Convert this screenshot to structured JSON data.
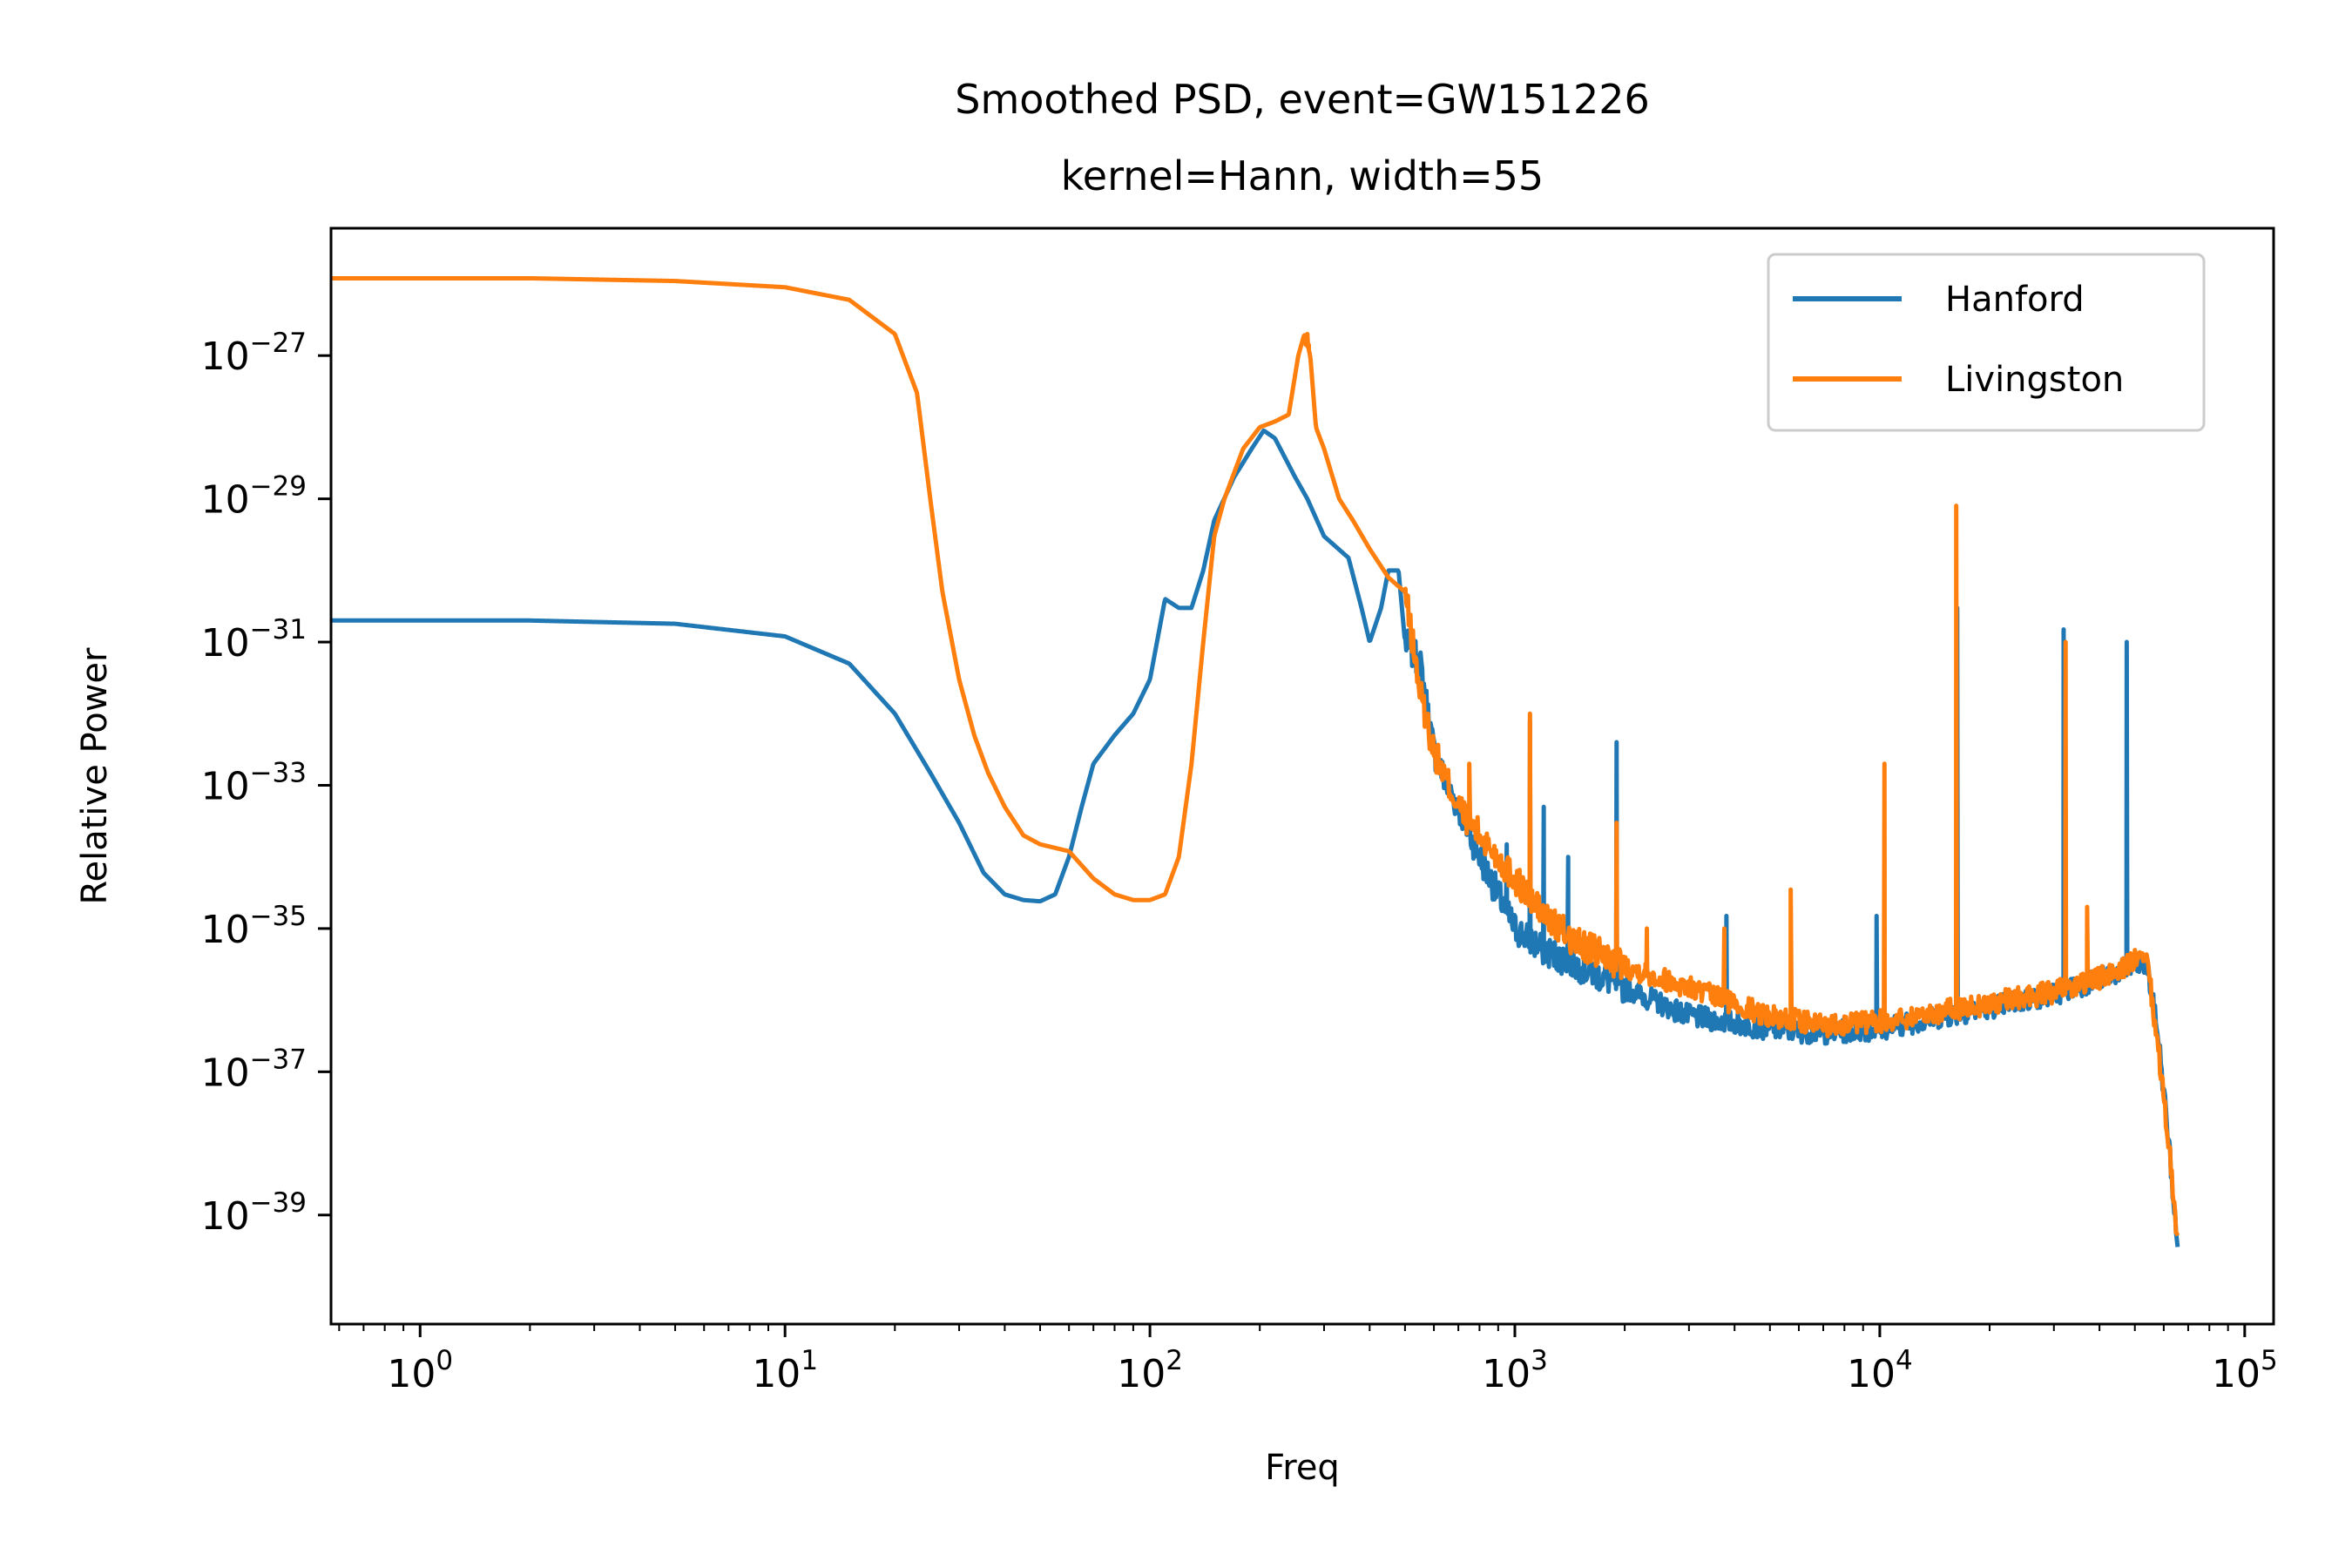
{
  "chart_data": {
    "type": "line",
    "title": "Smoothed PSD, event=GW151226",
    "subtitle": "kernel=Hann, width=55",
    "xlabel": "Freq",
    "ylabel": "Relative Power",
    "x_scale": "log",
    "y_scale": "log",
    "xlim": [
      0.57,
      120000
    ],
    "ylim": [
      3e-41,
      6e-26
    ],
    "x_ticks": [
      {
        "value": 1,
        "base": "10",
        "exp": "0"
      },
      {
        "value": 10,
        "base": "10",
        "exp": "1"
      },
      {
        "value": 100,
        "base": "10",
        "exp": "2"
      },
      {
        "value": 1000,
        "base": "10",
        "exp": "3"
      },
      {
        "value": 10000,
        "base": "10",
        "exp": "4"
      },
      {
        "value": 100000,
        "base": "10",
        "exp": "5"
      }
    ],
    "y_ticks": [
      {
        "value": 1e-27,
        "base": "10",
        "exp": "−27"
      },
      {
        "value": 1e-29,
        "base": "10",
        "exp": "−29"
      },
      {
        "value": 1e-31,
        "base": "10",
        "exp": "−31"
      },
      {
        "value": 1e-33,
        "base": "10",
        "exp": "−33"
      },
      {
        "value": 1e-35,
        "base": "10",
        "exp": "−35"
      },
      {
        "value": 1e-37,
        "base": "10",
        "exp": "−37"
      },
      {
        "value": 1e-39,
        "base": "10",
        "exp": "−39"
      }
    ],
    "grid": false,
    "legend_position": "top-right",
    "series": [
      {
        "name": "Hanford",
        "color": "#1f77b4",
        "noise_seed": 7,
        "points": [
          [
            0.57,
            2e-31
          ],
          [
            2,
            2e-31
          ],
          [
            5,
            1.8e-31
          ],
          [
            10,
            1.2e-31
          ],
          [
            15,
            5e-32
          ],
          [
            20,
            1e-32
          ],
          [
            25,
            1.5e-33
          ],
          [
            30,
            3e-34
          ],
          [
            35,
            6e-35
          ],
          [
            40,
            3e-35
          ],
          [
            45,
            2.5e-35
          ],
          [
            50,
            2.4e-35
          ],
          [
            55,
            3e-35
          ],
          [
            60,
            1e-34
          ],
          [
            65,
            5e-34
          ],
          [
            70,
            2e-33
          ],
          [
            80,
            5e-33
          ],
          [
            90,
            1e-32
          ],
          [
            100,
            3e-32
          ],
          [
            110,
            4e-31
          ],
          [
            120,
            3e-31
          ],
          [
            130,
            3e-31
          ],
          [
            140,
            1e-30
          ],
          [
            150,
            5e-30
          ],
          [
            170,
            2e-29
          ],
          [
            190,
            5e-29
          ],
          [
            205,
            9e-29
          ],
          [
            220,
            7e-29
          ],
          [
            250,
            2e-29
          ],
          [
            270,
            1e-29
          ],
          [
            300,
            3e-30
          ],
          [
            350,
            1.5e-30
          ],
          [
            380,
            3e-31
          ],
          [
            400,
            1e-31
          ],
          [
            430,
            3e-31
          ],
          [
            450,
            1e-30
          ],
          [
            480,
            1e-30
          ],
          [
            500,
            1e-31
          ],
          [
            550,
            5e-32
          ],
          [
            600,
            3e-33
          ],
          [
            650,
            1e-33
          ],
          [
            700,
            5e-34
          ],
          [
            800,
            1e-34
          ],
          [
            900,
            3e-35
          ],
          [
            1000,
            1e-35
          ],
          [
            1200,
            5e-36
          ],
          [
            1500,
            3e-36
          ],
          [
            2000,
            1.5e-36
          ],
          [
            3000,
            6e-37
          ],
          [
            5000,
            4e-37
          ],
          [
            7000,
            3.5e-37
          ],
          [
            10000,
            4e-37
          ],
          [
            15000,
            6e-37
          ],
          [
            20000,
            8e-37
          ],
          [
            30000,
            1.2e-36
          ],
          [
            40000,
            2e-36
          ],
          [
            50000,
            3e-36
          ],
          [
            54000,
            3e-36
          ],
          [
            58000,
            3e-37
          ],
          [
            62000,
            1e-38
          ],
          [
            65000,
            5e-40
          ],
          [
            65500,
            3e-40
          ]
        ],
        "spikes": [
          [
            470,
            1e-30
          ],
          [
            950,
            1.5e-34
          ],
          [
            1100,
            8e-33
          ],
          [
            1200,
            5e-34
          ],
          [
            1400,
            1e-34
          ],
          [
            1900,
            4e-33
          ],
          [
            3800,
            1.5e-35
          ],
          [
            9800,
            1.5e-35
          ],
          [
            16300,
            3e-31
          ],
          [
            31900,
            1.5e-31
          ],
          [
            47500,
            1e-31
          ]
        ]
      },
      {
        "name": "Livingston",
        "color": "#ff7f0e",
        "noise_seed": 13,
        "points": [
          [
            0.57,
            1.2e-26
          ],
          [
            2,
            1.2e-26
          ],
          [
            5,
            1.1e-26
          ],
          [
            10,
            9e-27
          ],
          [
            15,
            6e-27
          ],
          [
            20,
            2e-27
          ],
          [
            23,
            3e-28
          ],
          [
            25,
            1e-29
          ],
          [
            27,
            5e-31
          ],
          [
            30,
            3e-32
          ],
          [
            33,
            5e-33
          ],
          [
            36,
            1.5e-33
          ],
          [
            40,
            5e-34
          ],
          [
            45,
            2e-34
          ],
          [
            50,
            1.5e-34
          ],
          [
            60,
            1.2e-34
          ],
          [
            70,
            5e-35
          ],
          [
            80,
            3e-35
          ],
          [
            90,
            2.5e-35
          ],
          [
            100,
            2.5e-35
          ],
          [
            110,
            3e-35
          ],
          [
            120,
            1e-34
          ],
          [
            130,
            2e-33
          ],
          [
            140,
            1e-31
          ],
          [
            150,
            3e-30
          ],
          [
            160,
            1e-29
          ],
          [
            180,
            5e-29
          ],
          [
            200,
            1e-28
          ],
          [
            220,
            1.2e-28
          ],
          [
            240,
            1.5e-28
          ],
          [
            255,
            1e-27
          ],
          [
            265,
            2e-27
          ],
          [
            275,
            1e-27
          ],
          [
            285,
            1e-28
          ],
          [
            300,
            5e-29
          ],
          [
            330,
            1e-29
          ],
          [
            360,
            5e-30
          ],
          [
            400,
            2e-30
          ],
          [
            450,
            8e-31
          ],
          [
            500,
            5e-31
          ],
          [
            550,
            2e-32
          ],
          [
            600,
            3e-33
          ],
          [
            700,
            5e-34
          ],
          [
            800,
            2e-34
          ],
          [
            1000,
            5e-35
          ],
          [
            1200,
            1.5e-35
          ],
          [
            1500,
            6e-36
          ],
          [
            2000,
            3e-36
          ],
          [
            3000,
            1.5e-36
          ],
          [
            5000,
            6e-37
          ],
          [
            7000,
            4.5e-37
          ],
          [
            10000,
            5e-37
          ],
          [
            15000,
            7e-37
          ],
          [
            20000,
            9e-37
          ],
          [
            30000,
            1.3e-36
          ],
          [
            40000,
            2e-36
          ],
          [
            50000,
            3.5e-36
          ],
          [
            54000,
            3.5e-36
          ],
          [
            58000,
            2e-37
          ],
          [
            62000,
            1e-38
          ],
          [
            65000,
            6e-40
          ],
          [
            65500,
            5e-40
          ]
        ],
        "spikes": [
          [
            270,
            2e-27
          ],
          [
            750,
            2e-33
          ],
          [
            1100,
            1e-32
          ],
          [
            1900,
            3e-34
          ],
          [
            2300,
            1e-35
          ],
          [
            3750,
            1e-35
          ],
          [
            5700,
            3.5e-35
          ],
          [
            10300,
            2e-33
          ],
          [
            16200,
            8e-30
          ],
          [
            32300,
            1e-31
          ],
          [
            37000,
            2e-35
          ],
          [
            50000,
            5e-36
          ]
        ]
      }
    ]
  }
}
